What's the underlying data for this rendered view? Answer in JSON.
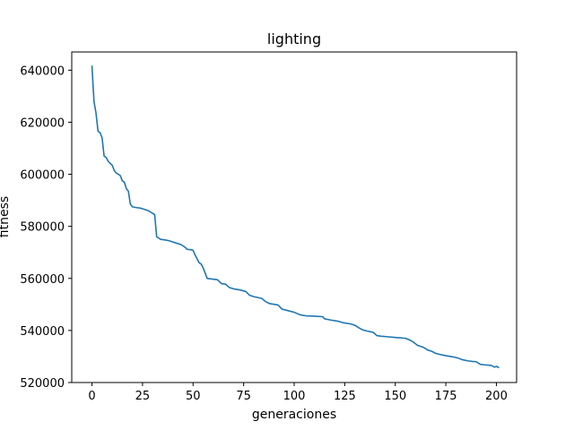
{
  "chart_data": {
    "type": "line",
    "title": "lighting",
    "xlabel": "generaciones",
    "ylabel": "fitness",
    "xlim": [
      -10,
      210
    ],
    "ylim": [
      520000,
      647000
    ],
    "grid": false,
    "legend": "none",
    "x_ticks": [
      0,
      25,
      50,
      75,
      100,
      125,
      150,
      175,
      200
    ],
    "x_tick_labels": [
      "0",
      "25",
      "50",
      "75",
      "100",
      "125",
      "150",
      "175",
      "200"
    ],
    "y_ticks": [
      520000,
      540000,
      560000,
      580000,
      600000,
      620000,
      640000
    ],
    "y_tick_labels": [
      "520000",
      "540000",
      "560000",
      "580000",
      "600000",
      "620000",
      "640000"
    ],
    "series": [
      {
        "color": "#1f77b4",
        "points": [
          [
            0,
            641500
          ],
          [
            1,
            628000
          ],
          [
            2,
            623500
          ],
          [
            3,
            616500
          ],
          [
            4,
            616000
          ],
          [
            5,
            614000
          ],
          [
            6,
            607000
          ],
          [
            7,
            606500
          ],
          [
            8,
            605000
          ],
          [
            10,
            603500
          ],
          [
            11,
            601500
          ],
          [
            12,
            600500
          ],
          [
            14,
            599500
          ],
          [
            15,
            597500
          ],
          [
            16,
            597000
          ],
          [
            17,
            594500
          ],
          [
            18,
            593500
          ],
          [
            19,
            588500
          ],
          [
            20,
            587500
          ],
          [
            22,
            587200
          ],
          [
            24,
            587000
          ],
          [
            26,
            586500
          ],
          [
            28,
            586000
          ],
          [
            30,
            585000
          ],
          [
            31,
            584500
          ],
          [
            32,
            576000
          ],
          [
            33,
            575500
          ],
          [
            34,
            575000
          ],
          [
            36,
            574800
          ],
          [
            38,
            574500
          ],
          [
            40,
            574000
          ],
          [
            42,
            573500
          ],
          [
            44,
            573000
          ],
          [
            46,
            572000
          ],
          [
            47,
            571200
          ],
          [
            49,
            571000
          ],
          [
            50,
            570800
          ],
          [
            51,
            569000
          ],
          [
            52,
            567500
          ],
          [
            53,
            566000
          ],
          [
            54,
            565500
          ],
          [
            55,
            564000
          ],
          [
            57,
            560000
          ],
          [
            60,
            559700
          ],
          [
            62,
            559500
          ],
          [
            64,
            558000
          ],
          [
            66,
            557800
          ],
          [
            68,
            556500
          ],
          [
            70,
            556000
          ],
          [
            73,
            555600
          ],
          [
            76,
            555000
          ],
          [
            78,
            553500
          ],
          [
            80,
            553000
          ],
          [
            84,
            552300
          ],
          [
            86,
            551000
          ],
          [
            88,
            550300
          ],
          [
            92,
            549800
          ],
          [
            94,
            548200
          ],
          [
            97,
            547600
          ],
          [
            100,
            547000
          ],
          [
            103,
            546000
          ],
          [
            106,
            545600
          ],
          [
            110,
            545500
          ],
          [
            114,
            545300
          ],
          [
            115,
            544500
          ],
          [
            118,
            544000
          ],
          [
            122,
            543500
          ],
          [
            124,
            543000
          ],
          [
            128,
            542500
          ],
          [
            130,
            542000
          ],
          [
            132,
            541000
          ],
          [
            134,
            540200
          ],
          [
            136,
            539800
          ],
          [
            139,
            539300
          ],
          [
            141,
            538000
          ],
          [
            143,
            537800
          ],
          [
            146,
            537600
          ],
          [
            150,
            537300
          ],
          [
            152,
            537200
          ],
          [
            155,
            537000
          ],
          [
            157,
            536400
          ],
          [
            159,
            535500
          ],
          [
            161,
            534300
          ],
          [
            164,
            533500
          ],
          [
            166,
            532500
          ],
          [
            168,
            532000
          ],
          [
            170,
            531200
          ],
          [
            172,
            530800
          ],
          [
            175,
            530300
          ],
          [
            179,
            529800
          ],
          [
            181,
            529400
          ],
          [
            183,
            528800
          ],
          [
            186,
            528300
          ],
          [
            188,
            528100
          ],
          [
            190,
            528000
          ],
          [
            192,
            527000
          ],
          [
            194,
            526800
          ],
          [
            197,
            526600
          ],
          [
            198,
            526400
          ],
          [
            199,
            525900
          ],
          [
            200,
            526200
          ],
          [
            201,
            525800
          ]
        ]
      }
    ]
  }
}
